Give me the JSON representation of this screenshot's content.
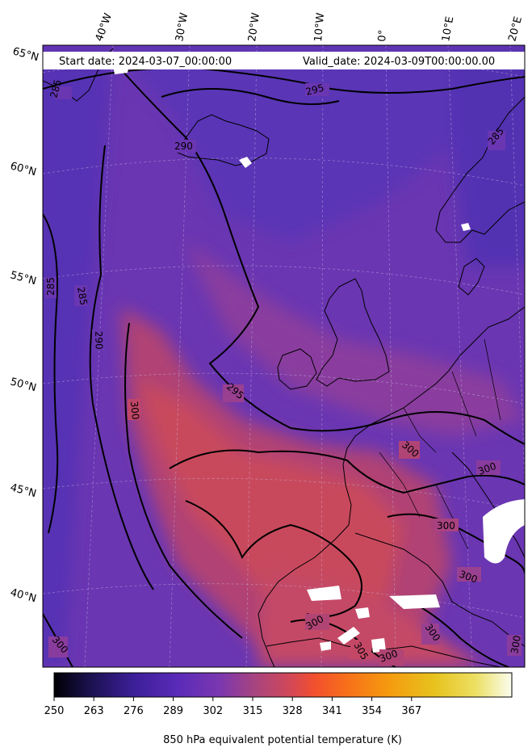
{
  "header": {
    "start_text": "Start date: 2024-03-07_00:00:00",
    "valid_text": "Valid_date: 2024-03-09T00:00:00.00"
  },
  "longitude_labels": [
    "40°W",
    "30°W",
    "20°W",
    "10°W",
    "0°",
    "10°E",
    "20°E"
  ],
  "latitude_labels": [
    "65°N",
    "60°N",
    "55°N",
    "50°N",
    "45°N",
    "40°N"
  ],
  "contour_labels": [
    "285",
    "295",
    "290",
    "285",
    "285",
    "285",
    "290",
    "295",
    "300",
    "300",
    "300",
    "300",
    "300",
    "300",
    "300",
    "305",
    "300",
    "300",
    "300"
  ],
  "colorbar": {
    "label": "850 hPa equivalent potential temperature (K)",
    "ticks": [
      "250",
      "263",
      "276",
      "289",
      "302",
      "315",
      "328",
      "341",
      "354",
      "367"
    ],
    "colors": [
      "#000004",
      "#1b1250",
      "#3b1e96",
      "#5a2bb8",
      "#7a37b0",
      "#a8447f",
      "#d44855",
      "#f3502d",
      "#f7701a",
      "#f59a0f",
      "#e7c21d",
      "#ecdf62",
      "#fbfdef"
    ]
  },
  "colors": {
    "cold_purple": "#5a32b0",
    "mid_purple": "#7038b0",
    "warm_red": "#c84860",
    "missing": "#ffffff"
  }
}
